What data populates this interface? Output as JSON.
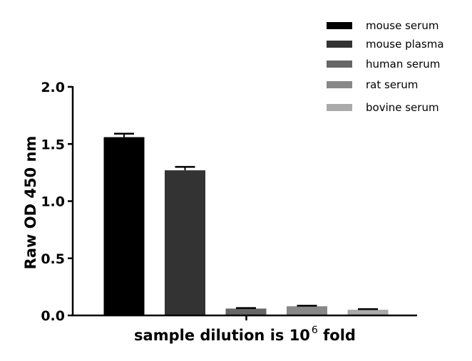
{
  "chart_data": {
    "type": "bar",
    "categories": [
      "mouse serum",
      "mouse plasma",
      "human serum",
      "rat serum",
      "bovine serum"
    ],
    "series": [
      {
        "name": "mouse serum",
        "value": 1.56,
        "error": 0.03,
        "color": "#000000"
      },
      {
        "name": "mouse plasma",
        "value": 1.27,
        "error": 0.03,
        "color": "#333333"
      },
      {
        "name": "human serum",
        "value": 0.06,
        "error": 0.005,
        "color": "#666666"
      },
      {
        "name": "rat serum",
        "value": 0.08,
        "error": 0.005,
        "color": "#888888"
      },
      {
        "name": "bovine serum",
        "value": 0.05,
        "error": 0.005,
        "color": "#aaaaaa"
      }
    ],
    "ylabel": "Raw OD 450 nm",
    "xlabel": {
      "prefix": "sample dilution is 10",
      "superscript": "6",
      "suffix": " fold"
    },
    "ylim": [
      0,
      2.0
    ],
    "yticks": [
      "0.0",
      "0.5",
      "1.0",
      "1.5",
      "2.0"
    ],
    "ytick_values": [
      0,
      0.5,
      1.0,
      1.5,
      2.0
    ],
    "legend_position": "top-right",
    "grid": false
  }
}
